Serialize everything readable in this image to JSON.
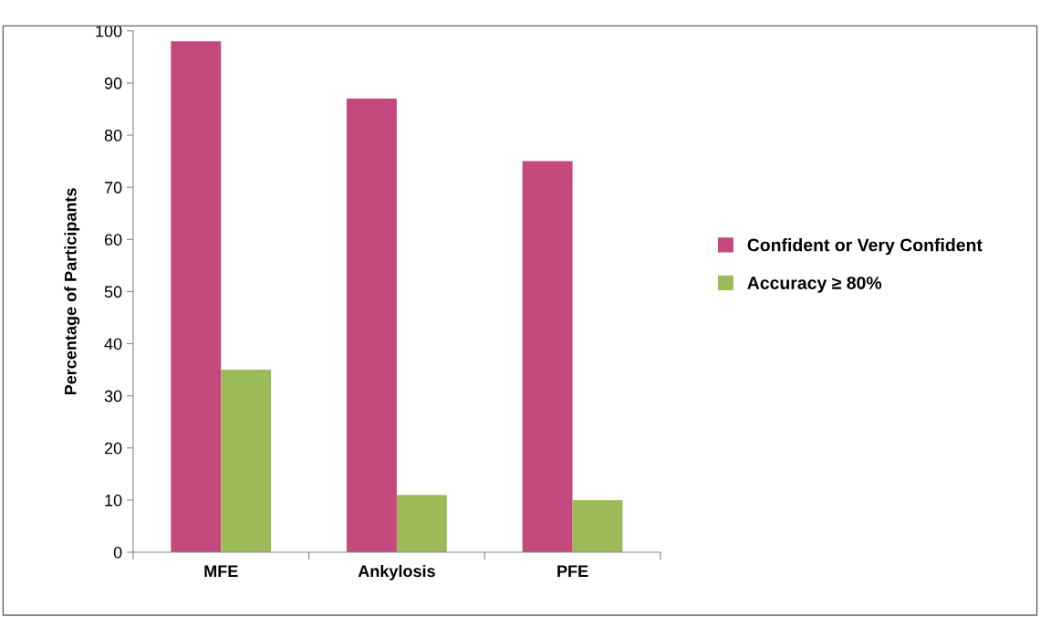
{
  "chart_data": {
    "type": "bar",
    "ylabel": "Percentage of Participants",
    "categories": [
      "MFE",
      "Ankylosis",
      "PFE"
    ],
    "series": [
      {
        "name": "Confident or Very Confident",
        "color": "#c2487e",
        "values": [
          98,
          87,
          75
        ]
      },
      {
        "name": "Accuracy ≥ 80%",
        "color": "#9bbb59",
        "values": [
          35,
          11,
          10
        ]
      }
    ],
    "ylim": [
      0,
      100
    ],
    "yticks": [
      0,
      10,
      20,
      30,
      40,
      50,
      60,
      70,
      80,
      90,
      100
    ],
    "grid": false,
    "legend": "right"
  }
}
